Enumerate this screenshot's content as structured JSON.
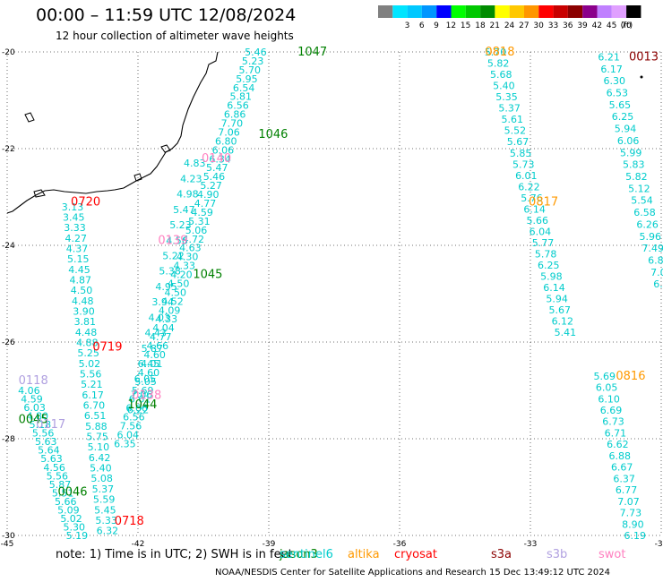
{
  "title": "00:00 – 11:59 UTC 12/08/2024",
  "subtitle": "12 hour collection of altimeter wave heights",
  "legend": {
    "unit": "(ft)",
    "bins": [
      {
        "label": "",
        "color": "#808080"
      },
      {
        "label": "3",
        "color": "#00e5ff"
      },
      {
        "label": "6",
        "color": "#00c8ff"
      },
      {
        "label": "9",
        "color": "#0096ff"
      },
      {
        "label": "12",
        "color": "#0000ff"
      },
      {
        "label": "15",
        "color": "#00ff00"
      },
      {
        "label": "18",
        "color": "#00c800"
      },
      {
        "label": "21",
        "color": "#008c00"
      },
      {
        "label": "24",
        "color": "#ffff00"
      },
      {
        "label": "27",
        "color": "#ffc800"
      },
      {
        "label": "30",
        "color": "#ff9600"
      },
      {
        "label": "33",
        "color": "#ff0000"
      },
      {
        "label": "36",
        "color": "#c80000"
      },
      {
        "label": "39",
        "color": "#8b0000"
      },
      {
        "label": "42",
        "color": "#8b008b"
      },
      {
        "label": "45",
        "color": "#c080ff"
      },
      {
        "label": "70",
        "color": "#e0a0ff"
      },
      {
        "label": "",
        "color": "#000000"
      }
    ]
  },
  "axes": {
    "lon_ticks": [
      "-45",
      "-42",
      "-39",
      "-36",
      "-33",
      "-30"
    ],
    "lat_ticks": [
      "-20",
      "-22",
      "-24",
      "-26",
      "-28",
      "-30"
    ],
    "lon_range": [
      -45,
      -30
    ],
    "lat_range": [
      -30,
      -20
    ]
  },
  "satellites": [
    {
      "name": "jason3",
      "color": "#008000"
    },
    {
      "name": "sentinel6",
      "color": "#00cccc"
    },
    {
      "name": "altika",
      "color": "#ff9900"
    },
    {
      "name": "cryosat",
      "color": "#ff0000"
    },
    {
      "name": "s3a",
      "color": "#8b0000"
    },
    {
      "name": "s3b",
      "color": "#b0a0e0"
    },
    {
      "name": "swot",
      "color": "#ff80c0"
    }
  ],
  "pass_labels": [
    {
      "text": "1047",
      "lon": -38.0,
      "lat": -20.0,
      "color": "#008000"
    },
    {
      "text": "1046",
      "lon": -38.9,
      "lat": -21.7,
      "color": "#008000"
    },
    {
      "text": "1045",
      "lon": -40.4,
      "lat": -24.6,
      "color": "#008000"
    },
    {
      "text": "1044",
      "lon": -41.9,
      "lat": -27.3,
      "color": "#008000"
    },
    {
      "text": "0045",
      "lon": -44.4,
      "lat": -27.6,
      "color": "#008000"
    },
    {
      "text": "0046",
      "lon": -43.5,
      "lat": -29.1,
      "color": "#008000"
    },
    {
      "text": "0720",
      "lon": -43.2,
      "lat": -23.1,
      "color": "#ff0000"
    },
    {
      "text": "0719",
      "lon": -42.7,
      "lat": -26.1,
      "color": "#ff0000"
    },
    {
      "text": "0718",
      "lon": -42.2,
      "lat": -29.7,
      "color": "#ff0000"
    },
    {
      "text": "0013",
      "lon": -30.4,
      "lat": -20.1,
      "color": "#8b0000"
    },
    {
      "text": "0818",
      "lon": -33.7,
      "lat": -20.0,
      "color": "#ff9900"
    },
    {
      "text": "0817",
      "lon": -32.7,
      "lat": -23.1,
      "color": "#ff9900"
    },
    {
      "text": "0816",
      "lon": -30.7,
      "lat": -26.7,
      "color": "#ff9900"
    },
    {
      "text": "0140",
      "lon": -40.2,
      "lat": -22.2,
      "color": "#ff80c0"
    },
    {
      "text": "0139",
      "lon": -41.2,
      "lat": -23.9,
      "color": "#ff80c0"
    },
    {
      "text": "0138",
      "lon": -41.8,
      "lat": -27.1,
      "color": "#ff80c0"
    },
    {
      "text": "0118",
      "lon": -44.4,
      "lat": -26.8,
      "color": "#b0a0e0"
    },
    {
      "text": "0117",
      "lon": -44.0,
      "lat": -27.7,
      "color": "#b0a0e0"
    }
  ],
  "wave_tracks": [
    {
      "name": "jason3-1047-1044",
      "color": "#00cccc",
      "start": [
        -39.3,
        -20.0
      ],
      "end": [
        -42.3,
        -28.1
      ],
      "values": [
        "5.46",
        "5.23",
        "5.70",
        "5.95",
        "6.54",
        "5.81",
        "6.56",
        "6.86",
        "7.70",
        "7.06",
        "6.80",
        "6.06",
        "6.34",
        "5.47",
        "5.46",
        "5.27",
        "4.90",
        "4.77",
        "4.59",
        "5.31",
        "5.06",
        "4.72",
        "4.63",
        "4.30",
        "4.33",
        "4.20",
        "4.50",
        "4.50",
        "4.52",
        "4.09",
        "4.33",
        "4.04",
        "4.77",
        "4.66",
        "4.60",
        "4.01",
        "4.60",
        "5.05",
        "5.69",
        "6.61",
        "6.66",
        "6.56",
        "7.56",
        "6.04",
        "6.35"
      ]
    },
    {
      "name": "cryosat-0720-0718",
      "color": "#00cccc",
      "start": [
        -43.5,
        -23.2
      ],
      "end": [
        -42.7,
        -29.9
      ],
      "values": [
        "3.13",
        "3.45",
        "3.33",
        "4.27",
        "4.37",
        "5.15",
        "4.45",
        "4.87",
        "4.50",
        "4.48",
        "3.90",
        "3.81",
        "4.48",
        "4.88",
        "5.25",
        "5.02",
        "5.56",
        "5.21",
        "6.17",
        "6.70",
        "6.51",
        "5.88",
        "5.75",
        "5.10",
        "6.42",
        "5.40",
        "5.08",
        "5.37",
        "5.59",
        "5.45",
        "5.33",
        "6.32"
      ]
    },
    {
      "name": "swot-0140-0138",
      "color": "#00cccc",
      "start": [
        -40.7,
        -22.3
      ],
      "end": [
        -42.0,
        -27.4
      ],
      "values": [
        "4.83",
        "4.23",
        "4.98",
        "5.47",
        "5.23",
        "4.56",
        "5.22",
        "5.38",
        "4.95",
        "3.94",
        "4.03",
        "4.43",
        "5.87",
        "6.45",
        "6.05",
        "7.06",
        "6.22"
      ]
    },
    {
      "name": "s3b-0118-0117",
      "color": "#00cccc",
      "start": [
        -44.5,
        -27.0
      ],
      "end": [
        -43.4,
        -30.0
      ],
      "values": [
        "4.06",
        "4.59",
        "6.03",
        "4.80",
        "5.18",
        "5.56",
        "5.63",
        "5.64",
        "5.63",
        "4.56",
        "5.56",
        "5.87",
        "5.51",
        "5.66",
        "5.09",
        "5.02",
        "5.30",
        "5.19"
      ]
    },
    {
      "name": "altika-0818-0816",
      "color": "#00cccc",
      "start": [
        -33.8,
        -20.0
      ],
      "end": [
        -32.2,
        -25.8
      ],
      "values": [
        "5.70",
        "5.82",
        "5.68",
        "5.40",
        "5.35",
        "5.37",
        "5.61",
        "5.52",
        "5.67",
        "5.85",
        "5.73",
        "6.01",
        "6.22",
        "5.76",
        "6.14",
        "5.66",
        "6.04",
        "5.77",
        "5.78",
        "6.25",
        "5.98",
        "6.14",
        "5.94",
        "5.67",
        "6.12",
        "5.41"
      ]
    },
    {
      "name": "altika-0816",
      "color": "#00cccc",
      "start": [
        -31.3,
        -26.7
      ],
      "end": [
        -30.6,
        -30.0
      ],
      "values": [
        "5.69",
        "6.05",
        "6.10",
        "6.69",
        "6.73",
        "6.71",
        "6.62",
        "6.88",
        "6.67",
        "6.37",
        "6.77",
        "7.07",
        "7.73",
        "8.90",
        "6.19"
      ]
    },
    {
      "name": "s3a-0013",
      "color": "#00cccc",
      "start": [
        -31.2,
        -20.1
      ],
      "end": [
        -30.0,
        -24.8
      ],
      "values": [
        "6.21",
        "6.17",
        "6.30",
        "6.53",
        "5.65",
        "6.25",
        "5.94",
        "6.06",
        "5.99",
        "5.83",
        "5.82",
        "5.12",
        "5.54",
        "6.58",
        "6.26",
        "5.96",
        "7.49",
        "6.8",
        "7.0",
        "6.4"
      ]
    }
  ],
  "footer": {
    "note_prefix": "note:  1) Time is in UTC;  2) SWH is in feet",
    "credit": "NOAA/NESDIS Center for Satellite Applications and Research     15 Dec 13:49:12 UTC 2024"
  }
}
